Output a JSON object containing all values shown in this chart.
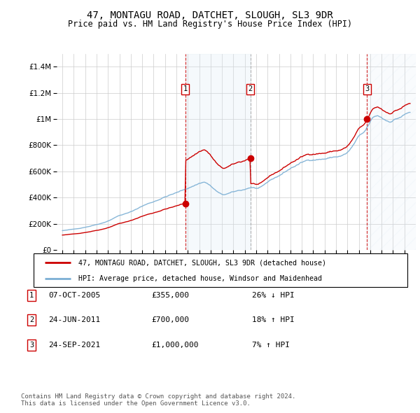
{
  "title": "47, MONTAGU ROAD, DATCHET, SLOUGH, SL3 9DR",
  "subtitle": "Price paid vs. HM Land Registry's House Price Index (HPI)",
  "ylim": [
    0,
    1500000
  ],
  "yticks": [
    0,
    200000,
    400000,
    600000,
    800000,
    1000000,
    1200000,
    1400000
  ],
  "sale_dates_decimal": [
    2005.77,
    2011.48,
    2021.73
  ],
  "sale_prices": [
    355000,
    700000,
    1000000
  ],
  "sale_labels": [
    "1",
    "2",
    "3"
  ],
  "sale_info": [
    {
      "label": "1",
      "date": "07-OCT-2005",
      "price": "£355,000",
      "hpi": "26% ↓ HPI"
    },
    {
      "label": "2",
      "date": "24-JUN-2011",
      "price": "£700,000",
      "hpi": "18% ↑ HPI"
    },
    {
      "label": "3",
      "date": "24-SEP-2021",
      "price": "£1,000,000",
      "hpi": "7% ↑ HPI"
    }
  ],
  "legend_line1": "47, MONTAGU ROAD, DATCHET, SLOUGH, SL3 9DR (detached house)",
  "legend_line2": "HPI: Average price, detached house, Windsor and Maidenhead",
  "footer1": "Contains HM Land Registry data © Crown copyright and database right 2024.",
  "footer2": "This data is licensed under the Open Government Licence v3.0.",
  "price_line_color": "#cc0000",
  "hpi_line_color": "#7bafd4",
  "shade_color": "#d8e8f5",
  "grid_color": "#cccccc",
  "background_color": "#ffffff",
  "sale_marker_color": "#cc0000",
  "sale_box_color": "#cc0000",
  "xlim_start": 1994.5,
  "xlim_end": 2026.0
}
